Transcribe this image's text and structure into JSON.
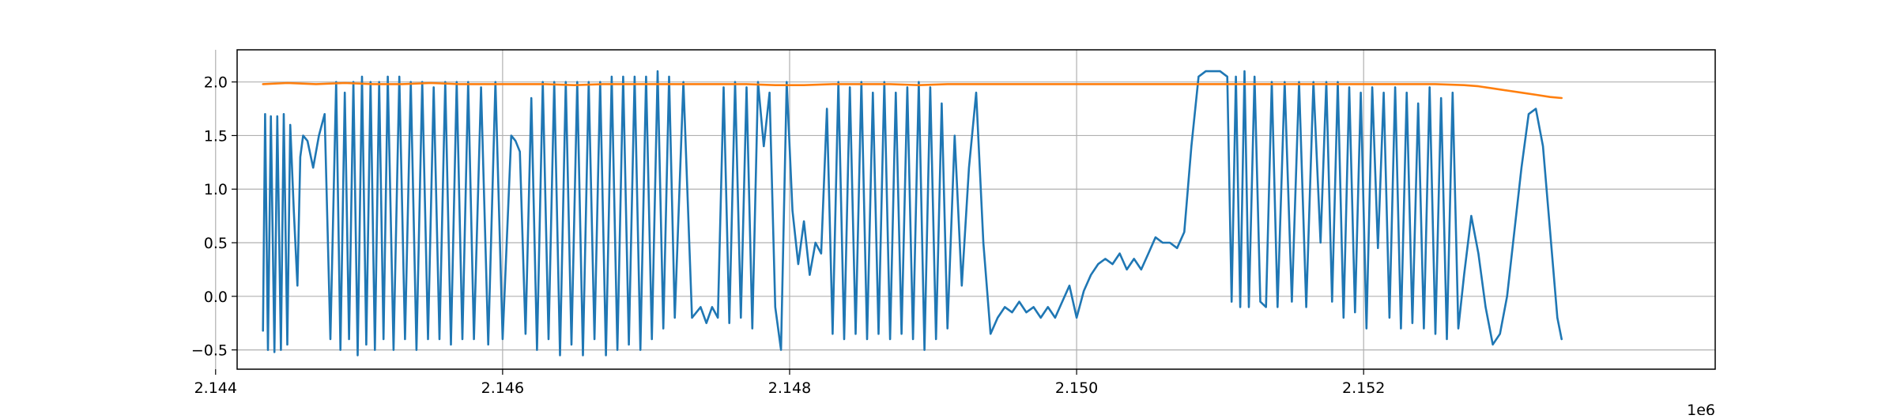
{
  "chart_data": {
    "type": "line",
    "title": "",
    "xlabel": "",
    "ylabel": "",
    "x_offset_label": "1e6",
    "xlim": [
      2144150,
      2154450
    ],
    "ylim": [
      -0.68,
      2.3
    ],
    "x_ticks": [
      2144000,
      2146000,
      2148000,
      2150000,
      2152000
    ],
    "x_tick_labels": [
      "2.144",
      "2.146",
      "2.148",
      "2.150",
      "2.152"
    ],
    "y_ticks": [
      -0.5,
      0.0,
      0.5,
      1.0,
      1.5,
      2.0
    ],
    "y_tick_labels": [
      "−0.5",
      "0.0",
      "0.5",
      "1.0",
      "1.5",
      "2.0"
    ],
    "grid": true,
    "colors": {
      "series_1": "#1f77b4",
      "series_2": "#ff7f0e",
      "grid": "#b0b0b0",
      "axes": "#000000"
    },
    "series": [
      {
        "color": "#1f77b4",
        "x": [
          2144330,
          2144345,
          2144365,
          2144385,
          2144410,
          2144430,
          2144455,
          2144475,
          2144500,
          2144520,
          2144545,
          2144570,
          2144590,
          2144610,
          2144640,
          2144680,
          2144720,
          2144760,
          2144800,
          2144840,
          2144870,
          2144900,
          2144930,
          2144960,
          2144990,
          2145020,
          2145050,
          2145080,
          2145110,
          2145140,
          2145170,
          2145200,
          2145240,
          2145280,
          2145320,
          2145360,
          2145400,
          2145440,
          2145480,
          2145520,
          2145560,
          2145600,
          2145640,
          2145680,
          2145720,
          2145760,
          2145800,
          2145850,
          2145900,
          2145950,
          2146000,
          2146060,
          2146090,
          2146120,
          2146160,
          2146200,
          2146240,
          2146280,
          2146320,
          2146360,
          2146400,
          2146440,
          2146480,
          2146520,
          2146560,
          2146600,
          2146640,
          2146680,
          2146720,
          2146760,
          2146800,
          2146840,
          2146880,
          2146920,
          2146960,
          2147000,
          2147040,
          2147080,
          2147120,
          2147160,
          2147200,
          2147260,
          2147320,
          2147380,
          2147420,
          2147460,
          2147500,
          2147540,
          2147580,
          2147620,
          2147660,
          2147700,
          2147740,
          2147780,
          2147820,
          2147860,
          2147900,
          2147940,
          2147980,
          2148020,
          2148060,
          2148100,
          2148140,
          2148180,
          2148220,
          2148260,
          2148300,
          2148340,
          2148380,
          2148420,
          2148460,
          2148500,
          2148540,
          2148580,
          2148620,
          2148660,
          2148700,
          2148740,
          2148780,
          2148820,
          2148860,
          2148900,
          2148940,
          2148980,
          2149020,
          2149060,
          2149100,
          2149150,
          2149200,
          2149250,
          2149300,
          2149350,
          2149400,
          2149450,
          2149500,
          2149550,
          2149600,
          2149650,
          2149700,
          2149750,
          2149800,
          2149850,
          2149900,
          2149950,
          2150000,
          2150050,
          2150100,
          2150150,
          2150200,
          2150250,
          2150300,
          2150350,
          2150400,
          2150450,
          2150500,
          2150550,
          2150600,
          2150650,
          2150700,
          2150750,
          2150800,
          2150850,
          2150900,
          2150950,
          2151000,
          2151050,
          2151080,
          2151110,
          2151140,
          2151170,
          2151200,
          2151240,
          2151280,
          2151320,
          2151360,
          2151400,
          2151450,
          2151500,
          2151550,
          2151600,
          2151650,
          2151700,
          2151740,
          2151780,
          2151820,
          2151860,
          2151900,
          2151940,
          2151980,
          2152020,
          2152060,
          2152100,
          2152140,
          2152180,
          2152220,
          2152260,
          2152300,
          2152340,
          2152380,
          2152420,
          2152460,
          2152500,
          2152540,
          2152580,
          2152620,
          2152660,
          2152700,
          2152750,
          2152800,
          2152850,
          2152900,
          2152950,
          2153000,
          2153050,
          2153100,
          2153150,
          2153200,
          2153250,
          2153300,
          2153350,
          2153380
        ],
        "y": [
          -0.32,
          1.7,
          -0.5,
          1.68,
          -0.52,
          1.68,
          -0.5,
          1.7,
          -0.45,
          1.6,
          0.8,
          0.1,
          1.3,
          1.5,
          1.45,
          1.2,
          1.5,
          1.7,
          -0.4,
          2.0,
          -0.5,
          1.9,
          -0.4,
          2.0,
          -0.55,
          2.05,
          -0.45,
          2.0,
          -0.5,
          2.0,
          -0.4,
          2.05,
          -0.5,
          2.05,
          -0.4,
          2.0,
          -0.5,
          2.0,
          -0.4,
          1.95,
          -0.4,
          2.0,
          -0.45,
          2.0,
          -0.4,
          2.0,
          -0.4,
          1.95,
          -0.45,
          2.0,
          -0.4,
          1.5,
          1.45,
          1.35,
          -0.35,
          1.85,
          -0.5,
          2.0,
          -0.4,
          2.0,
          -0.55,
          2.0,
          -0.45,
          2.0,
          -0.55,
          2.0,
          -0.4,
          2.0,
          -0.55,
          2.05,
          -0.5,
          2.05,
          -0.45,
          2.05,
          -0.5,
          2.05,
          -0.4,
          2.1,
          -0.3,
          2.05,
          -0.2,
          2.0,
          -0.2,
          -0.1,
          -0.25,
          -0.1,
          -0.2,
          1.95,
          -0.25,
          2.0,
          -0.2,
          1.95,
          -0.3,
          2.0,
          1.4,
          1.9,
          -0.1,
          -0.5,
          2.0,
          0.8,
          0.3,
          0.7,
          0.2,
          0.5,
          0.4,
          1.75,
          -0.35,
          2.0,
          -0.4,
          1.95,
          -0.35,
          2.0,
          -0.4,
          1.9,
          -0.35,
          2.0,
          -0.4,
          1.9,
          -0.35,
          1.95,
          -0.4,
          2.0,
          -0.5,
          1.95,
          -0.4,
          1.8,
          -0.3,
          1.5,
          0.1,
          1.2,
          1.9,
          0.5,
          -0.35,
          -0.2,
          -0.1,
          -0.15,
          -0.05,
          -0.15,
          -0.1,
          -0.2,
          -0.1,
          -0.2,
          -0.05,
          0.1,
          -0.2,
          0.05,
          0.2,
          0.3,
          0.35,
          0.3,
          0.4,
          0.25,
          0.35,
          0.25,
          0.4,
          0.55,
          0.5,
          0.5,
          0.45,
          0.6,
          1.4,
          2.05,
          2.1,
          2.1,
          2.1,
          2.05,
          -0.05,
          2.05,
          -0.1,
          2.1,
          -0.1,
          2.05,
          -0.05,
          -0.1,
          2.0,
          -0.1,
          2.0,
          -0.05,
          2.0,
          -0.1,
          2.0,
          0.5,
          2.0,
          -0.05,
          2.0,
          -0.2,
          1.95,
          -0.15,
          1.9,
          -0.3,
          1.95,
          0.45,
          1.9,
          -0.2,
          1.95,
          -0.3,
          1.9,
          -0.25,
          1.8,
          -0.3,
          1.95,
          -0.35,
          1.85,
          -0.4,
          1.9,
          -0.3,
          0.2,
          0.75,
          0.4,
          -0.1,
          -0.45,
          -0.35,
          0.0,
          0.6,
          1.2,
          1.7,
          1.75,
          1.4,
          0.6,
          -0.2,
          -0.4
        ]
      },
      {
        "color": "#ff7f0e",
        "x": [
          2144330,
          2144500,
          2144700,
          2144900,
          2145100,
          2145300,
          2145500,
          2145700,
          2145900,
          2146100,
          2146300,
          2146500,
          2146700,
          2146900,
          2147100,
          2147300,
          2147500,
          2147700,
          2147900,
          2148100,
          2148300,
          2148500,
          2148700,
          2148900,
          2149100,
          2149300,
          2149500,
          2149700,
          2149900,
          2150100,
          2150300,
          2150500,
          2150700,
          2150900,
          2151100,
          2151300,
          2151500,
          2151700,
          2151900,
          2152100,
          2152300,
          2152500,
          2152700,
          2152800,
          2152900,
          2153000,
          2153100,
          2153200,
          2153300,
          2153380
        ],
        "y": [
          1.98,
          1.99,
          1.98,
          1.99,
          1.98,
          1.98,
          1.99,
          1.98,
          1.98,
          1.98,
          1.98,
          1.97,
          1.98,
          1.98,
          1.98,
          1.98,
          1.98,
          1.98,
          1.97,
          1.97,
          1.98,
          1.98,
          1.98,
          1.97,
          1.98,
          1.98,
          1.98,
          1.98,
          1.98,
          1.98,
          1.98,
          1.98,
          1.98,
          1.98,
          1.98,
          1.98,
          1.98,
          1.98,
          1.98,
          1.98,
          1.98,
          1.98,
          1.97,
          1.96,
          1.94,
          1.92,
          1.9,
          1.88,
          1.86,
          1.85
        ]
      }
    ]
  }
}
